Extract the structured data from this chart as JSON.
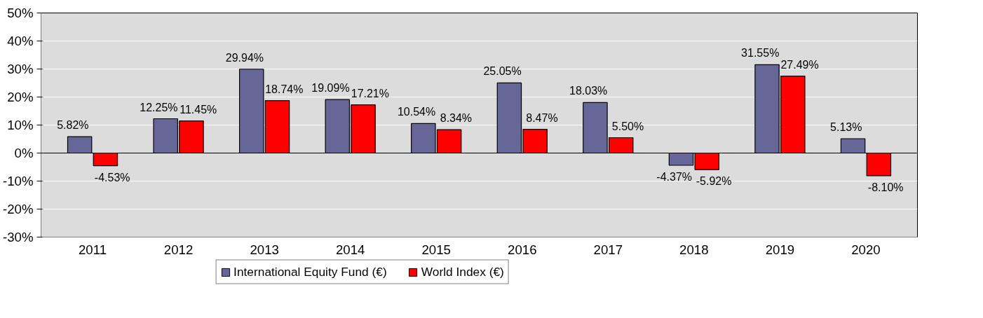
{
  "chart_data": {
    "type": "bar",
    "categories": [
      "2011",
      "2012",
      "2013",
      "2014",
      "2015",
      "2016",
      "2017",
      "2018",
      "2019",
      "2020"
    ],
    "series": [
      {
        "name": "International Equity Fund (€)",
        "color": "#666699",
        "values": [
          5.82,
          12.25,
          29.94,
          19.09,
          10.54,
          25.05,
          18.03,
          -4.37,
          31.55,
          5.13
        ],
        "value_labels": [
          "5.82%",
          "12.25%",
          "29.94%",
          "19.09%",
          "10.54%",
          "25.05%",
          "18.03%",
          "-4.37%",
          "31.55%",
          "5.13%"
        ]
      },
      {
        "name": "World Index (€)",
        "color": "#ff0000",
        "values": [
          -4.53,
          11.45,
          18.74,
          17.21,
          8.34,
          8.47,
          5.5,
          -5.92,
          27.49,
          -8.1
        ],
        "value_labels": [
          "-4.53%",
          "11.45%",
          "18.74%",
          "17.21%",
          "8.34%",
          "8.47%",
          "5.50%",
          "-5.92%",
          "27.49%",
          "-8.10%"
        ]
      }
    ],
    "ylim": [
      -30,
      50
    ],
    "yticks": [
      {
        "value": -30,
        "label": "-30%"
      },
      {
        "value": -20,
        "label": "-20%"
      },
      {
        "value": -10,
        "label": "-10%"
      },
      {
        "value": 0,
        "label": "0%"
      },
      {
        "value": 10,
        "label": "10%"
      },
      {
        "value": 20,
        "label": "20%"
      },
      {
        "value": 30,
        "label": "30%"
      },
      {
        "value": 40,
        "label": "40%"
      },
      {
        "value": 50,
        "label": "50%"
      }
    ],
    "grid": "y",
    "legend": "bottom"
  }
}
